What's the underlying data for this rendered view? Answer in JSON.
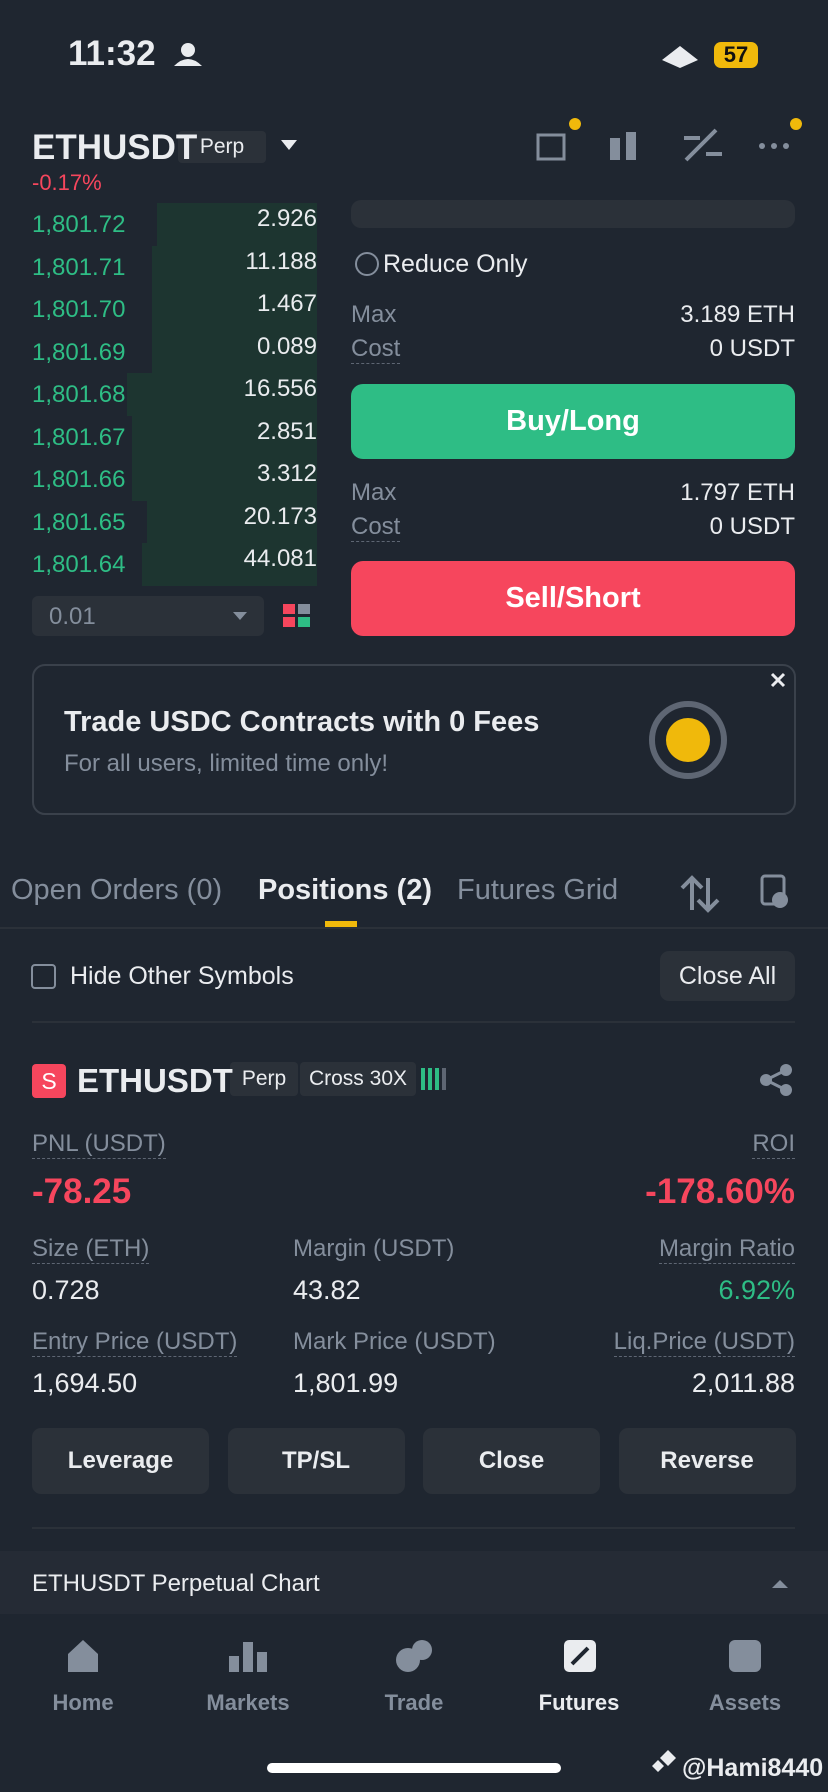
{
  "status": {
    "time": "11:32",
    "battery": "57"
  },
  "header": {
    "symbol": "ETHUSDT",
    "badge": "Perp",
    "change": "-0.17%"
  },
  "orderbook": {
    "rows": [
      [
        "1,801.72",
        "2.926"
      ],
      [
        "1,801.71",
        "11.188"
      ],
      [
        "1,801.70",
        "1.467"
      ],
      [
        "1,801.69",
        "0.089"
      ],
      [
        "1,801.68",
        "16.556"
      ],
      [
        "1,801.67",
        "2.851"
      ],
      [
        "1,801.66",
        "3.312"
      ],
      [
        "1,801.65",
        "20.173"
      ],
      [
        "1,801.64",
        "44.081"
      ]
    ],
    "depth": "0.01"
  },
  "order_form": {
    "reduce_only": "Reduce Only",
    "buy": {
      "max_label": "Max",
      "max": "3.189 ETH",
      "cost_label": "Cost",
      "cost": "0 USDT",
      "button": "Buy/Long"
    },
    "sell": {
      "max_label": "Max",
      "max": "1.797 ETH",
      "cost_label": "Cost",
      "cost": "0 USDT",
      "button": "Sell/Short"
    }
  },
  "banner": {
    "title": "Trade USDC Contracts with 0 Fees",
    "subtitle": "For all users, limited time only!"
  },
  "tabs": [
    "Open Orders (0)",
    "Positions (2)",
    "Futures Grid"
  ],
  "positions_bar": {
    "hide_label": "Hide Other Symbols",
    "close_all": "Close All"
  },
  "position": {
    "side": "S",
    "symbol": "ETHUSDT",
    "badge": "Perp",
    "margin_mode": "Cross 30X",
    "pnl_label": "PNL (USDT)",
    "pnl": "-78.25",
    "roi_label": "ROI",
    "roi": "-178.60%",
    "fields": [
      {
        "label": "Size (ETH)",
        "value": "0.728"
      },
      {
        "label": "Margin (USDT)",
        "value": "43.82"
      },
      {
        "label": "Margin Ratio",
        "value": "6.92%"
      },
      {
        "label": "Entry Price (USDT)",
        "value": "1,694.50"
      },
      {
        "label": "Mark Price (USDT)",
        "value": "1,801.99"
      },
      {
        "label": "Liq.Price (USDT)",
        "value": "2,011.88"
      }
    ],
    "buttons": [
      "Leverage",
      "TP/SL",
      "Close",
      "Reverse"
    ]
  },
  "chart_bar": "ETHUSDT Perpetual  Chart",
  "nav": [
    "Home",
    "Markets",
    "Trade",
    "Futures",
    "Assets"
  ],
  "watermark": "@Hami8440"
}
